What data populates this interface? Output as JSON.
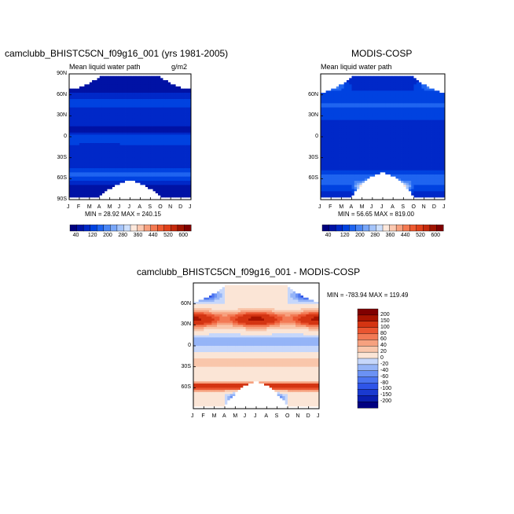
{
  "chart_data": [
    {
      "type": "heatmap",
      "title": "camclubb_BHISTC5CN_f09g16_001 (yrs 1981-2005)",
      "subtitle_left": "Mean liquid water path",
      "units": "g/m2",
      "x": [
        "J",
        "F",
        "M",
        "A",
        "M",
        "J",
        "J",
        "A",
        "S",
        "O",
        "N",
        "D",
        "J"
      ],
      "y_ticks": [
        "90N",
        "60N",
        "30N",
        "0",
        "30S",
        "60S",
        "90S"
      ],
      "y_range": [
        -90,
        90
      ],
      "stats": "MIN =   28.92 MAX = 240.15",
      "min": 28.92,
      "max": 240.15,
      "colorbar": {
        "labels": [
          "40",
          "120",
          "200",
          "280",
          "360",
          "440",
          "520",
          "600"
        ],
        "levels": [
          20,
          40,
          60,
          80,
          100,
          120,
          140,
          160,
          180,
          200,
          220,
          240,
          260,
          280,
          300,
          320,
          340,
          360,
          380,
          400,
          420,
          440,
          460,
          480,
          500,
          520,
          540,
          560,
          580,
          600
        ]
      }
    },
    {
      "type": "heatmap",
      "title": "MODIS-COSP",
      "subtitle_left": "Mean liquid water path",
      "x": [
        "J",
        "F",
        "M",
        "A",
        "M",
        "J",
        "J",
        "A",
        "S",
        "O",
        "N",
        "D",
        "J"
      ],
      "y_ticks": [
        "60N",
        "30N",
        "0",
        "30S",
        "60S"
      ],
      "y_range": [
        -90,
        90
      ],
      "stats": "MIN =   56.65 MAX = 819.00",
      "min": 56.65,
      "max": 819.0,
      "colorbar": {
        "labels": [
          "40",
          "120",
          "200",
          "280",
          "360",
          "440",
          "520",
          "600"
        ]
      }
    },
    {
      "type": "heatmap",
      "title": "camclubb_BHISTC5CN_f09g16_001 - MODIS-COSP",
      "x": [
        "J",
        "F",
        "M",
        "A",
        "M",
        "J",
        "J",
        "A",
        "S",
        "O",
        "N",
        "D",
        "J"
      ],
      "y_ticks": [
        "60N",
        "30N",
        "0",
        "30S",
        "60S"
      ],
      "y_range": [
        -90,
        90
      ],
      "stats": "MIN = -783.94 MAX = 119.49",
      "min": -783.94,
      "max": 119.49,
      "colorbar": {
        "labels": [
          "200",
          "150",
          "100",
          "80",
          "60",
          "40",
          "20",
          "0",
          "-20",
          "-40",
          "-60",
          "-80",
          "-100",
          "-150",
          "-200"
        ]
      }
    }
  ],
  "colors": {
    "blue_scale": [
      "#00007f",
      "#0012a5",
      "#0028c8",
      "#0042e0",
      "#1f64f0",
      "#4a86f5",
      "#78a6f8",
      "#a4c4fa",
      "#cddffc"
    ],
    "red_scale": [
      "#fde8dc",
      "#fbc8b0",
      "#f8a07e",
      "#f47a52",
      "#ee5a30",
      "#e0401a",
      "#c52a0c",
      "#a01400",
      "#7f0000"
    ],
    "white": "#ffffff"
  }
}
